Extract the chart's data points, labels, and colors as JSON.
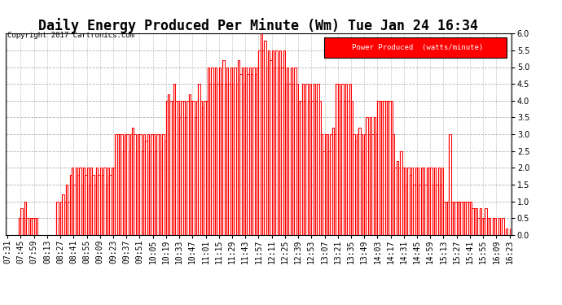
{
  "title": "Daily Energy Produced Per Minute (Wm) Tue Jan 24 16:34",
  "copyright": "Copyright 2017 Cartronics.com",
  "legend_label": "Power Produced  (watts/minute)",
  "ylim": [
    0.0,
    6.0
  ],
  "yticks": [
    0.0,
    0.5,
    1.0,
    1.5,
    2.0,
    2.5,
    3.0,
    3.5,
    4.0,
    4.5,
    5.0,
    5.5,
    6.0
  ],
  "line_color": "#ff0000",
  "bg_color": "#ffffff",
  "grid_color": "#aaaaaa",
  "title_fontsize": 12,
  "tick_fontsize": 7,
  "x_labels": [
    "07:31",
    "07:45",
    "07:59",
    "08:13",
    "08:27",
    "08:41",
    "08:55",
    "09:09",
    "09:23",
    "09:37",
    "09:51",
    "10:05",
    "10:19",
    "10:33",
    "10:47",
    "11:01",
    "11:15",
    "11:29",
    "11:43",
    "11:57",
    "12:11",
    "12:25",
    "12:39",
    "12:53",
    "13:07",
    "13:21",
    "13:35",
    "13:49",
    "14:03",
    "14:17",
    "14:31",
    "14:45",
    "14:59",
    "15:13",
    "15:27",
    "15:41",
    "15:55",
    "16:09",
    "16:23"
  ],
  "data_times": [
    "07:31",
    "07:33",
    "07:35",
    "07:37",
    "07:39",
    "07:41",
    "07:43",
    "07:45",
    "07:47",
    "07:49",
    "07:51",
    "07:53",
    "07:55",
    "07:57",
    "07:59",
    "08:01",
    "08:03",
    "08:05",
    "08:07",
    "08:09",
    "08:11",
    "08:13",
    "08:15",
    "08:17",
    "08:19",
    "08:21",
    "08:23",
    "08:25",
    "08:27",
    "08:29",
    "08:31",
    "08:33",
    "08:35",
    "08:37",
    "08:39",
    "08:41",
    "08:43",
    "08:45",
    "08:47",
    "08:49",
    "08:51",
    "08:53",
    "08:55",
    "08:57",
    "08:59",
    "09:01",
    "09:03",
    "09:05",
    "09:07",
    "09:09",
    "09:11",
    "09:13",
    "09:15",
    "09:17",
    "09:19",
    "09:21",
    "09:23",
    "09:25",
    "09:27",
    "09:29",
    "09:31",
    "09:33",
    "09:35",
    "09:37",
    "09:39",
    "09:41",
    "09:43",
    "09:45",
    "09:47",
    "09:49",
    "09:51",
    "09:53",
    "09:55",
    "09:57",
    "09:59",
    "10:01",
    "10:03",
    "10:05",
    "10:07",
    "10:09",
    "10:11",
    "10:13",
    "10:15",
    "10:17",
    "10:19",
    "10:21",
    "10:23",
    "10:25",
    "10:27",
    "10:29",
    "10:31",
    "10:33",
    "10:35",
    "10:37",
    "10:39",
    "10:41",
    "10:43",
    "10:45",
    "10:47",
    "10:49",
    "10:51",
    "10:53",
    "10:55",
    "10:57",
    "10:59",
    "11:01",
    "11:03",
    "11:05",
    "11:07",
    "11:09",
    "11:11",
    "11:13",
    "11:15",
    "11:17",
    "11:19",
    "11:21",
    "11:23",
    "11:25",
    "11:27",
    "11:29",
    "11:31",
    "11:33",
    "11:35",
    "11:37",
    "11:39",
    "11:41",
    "11:43",
    "11:45",
    "11:47",
    "11:49",
    "11:51",
    "11:53",
    "11:55",
    "11:57",
    "11:59",
    "12:01",
    "12:03",
    "12:05",
    "12:07",
    "12:09",
    "12:11",
    "12:13",
    "12:15",
    "12:17",
    "12:19",
    "12:21",
    "12:23",
    "12:25",
    "12:27",
    "12:29",
    "12:31",
    "12:33",
    "12:35",
    "12:37",
    "12:39",
    "12:41",
    "12:43",
    "12:45",
    "12:47",
    "12:49",
    "12:51",
    "12:53",
    "12:55",
    "12:57",
    "12:59",
    "13:01",
    "13:03",
    "13:05",
    "13:07",
    "13:09",
    "13:11",
    "13:13",
    "13:15",
    "13:17",
    "13:19",
    "13:21",
    "13:23",
    "13:25",
    "13:27",
    "13:29",
    "13:31",
    "13:33",
    "13:35",
    "13:37",
    "13:39",
    "13:41",
    "13:43",
    "13:45",
    "13:47",
    "13:49",
    "13:51",
    "13:53",
    "13:55",
    "13:57",
    "13:59",
    "14:01",
    "14:03",
    "14:05",
    "14:07",
    "14:09",
    "14:11",
    "14:13",
    "14:15",
    "14:17",
    "14:19",
    "14:21",
    "14:23",
    "14:25",
    "14:27",
    "14:29",
    "14:31",
    "14:33",
    "14:35",
    "14:37",
    "14:39",
    "14:41",
    "14:43",
    "14:45",
    "14:47",
    "14:49",
    "14:51",
    "14:53",
    "14:55",
    "14:57",
    "14:59",
    "15:01",
    "15:03",
    "15:05",
    "15:07",
    "15:09",
    "15:11",
    "15:13",
    "15:15",
    "15:17",
    "15:19",
    "15:21",
    "15:23",
    "15:25",
    "15:27",
    "15:29",
    "15:31",
    "15:33",
    "15:35",
    "15:37",
    "15:39",
    "15:41",
    "15:43",
    "15:45",
    "15:47",
    "15:49",
    "15:51",
    "15:53",
    "15:55",
    "15:57",
    "15:59",
    "16:01",
    "16:03",
    "16:05",
    "16:07",
    "16:09",
    "16:11",
    "16:13",
    "16:15",
    "16:17",
    "16:19",
    "16:21",
    "16:23"
  ],
  "data_values": [
    0.0,
    0.0,
    0.0,
    0.0,
    0.0,
    0.0,
    0.5,
    0.8,
    0.5,
    1.0,
    0.5,
    0.0,
    0.5,
    0.5,
    0.5,
    0.5,
    0.0,
    0.0,
    0.0,
    0.0,
    0.0,
    0.0,
    0.0,
    0.0,
    0.0,
    0.0,
    1.0,
    0.5,
    1.0,
    1.2,
    1.0,
    1.5,
    1.0,
    1.8,
    2.0,
    1.5,
    2.0,
    1.8,
    2.0,
    1.5,
    2.0,
    1.8,
    2.0,
    1.5,
    2.0,
    1.8,
    1.5,
    2.0,
    1.8,
    2.0,
    1.8,
    2.0,
    1.5,
    2.0,
    1.8,
    2.0,
    2.0,
    3.0,
    3.0,
    3.0,
    3.0,
    2.5,
    3.0,
    3.0,
    2.5,
    3.0,
    3.2,
    3.0,
    2.5,
    3.0,
    3.0,
    2.5,
    3.0,
    2.8,
    3.0,
    2.5,
    3.0,
    3.0,
    2.5,
    3.0,
    3.0,
    2.5,
    3.0,
    2.8,
    4.0,
    4.2,
    4.0,
    4.0,
    4.5,
    4.0,
    4.0,
    3.5,
    4.0,
    4.0,
    3.5,
    4.0,
    4.2,
    4.0,
    4.0,
    3.5,
    4.0,
    4.5,
    4.0,
    3.8,
    4.0,
    4.0,
    5.0,
    4.5,
    5.0,
    4.5,
    5.0,
    4.5,
    5.0,
    4.5,
    5.2,
    4.5,
    5.0,
    4.5,
    5.0,
    4.5,
    5.0,
    4.5,
    5.2,
    4.8,
    5.0,
    4.5,
    5.0,
    4.8,
    5.0,
    4.8,
    5.0,
    4.8,
    5.0,
    5.5,
    6.0,
    5.5,
    5.8,
    5.0,
    5.5,
    5.2,
    5.5,
    5.0,
    5.5,
    5.0,
    5.5,
    5.0,
    5.5,
    4.5,
    5.0,
    4.5,
    5.0,
    4.5,
    5.0,
    4.5,
    4.0,
    4.0,
    4.5,
    4.0,
    4.5,
    4.0,
    4.5,
    4.0,
    4.5,
    4.0,
    4.5,
    4.0,
    3.0,
    2.5,
    3.0,
    3.0,
    2.5,
    3.0,
    3.2,
    3.0,
    4.5,
    4.5,
    4.0,
    4.5,
    4.0,
    4.5,
    4.0,
    4.5,
    4.0,
    3.0,
    2.8,
    3.0,
    3.2,
    3.0,
    2.5,
    3.0,
    3.5,
    3.0,
    3.5,
    3.0,
    3.5,
    3.0,
    4.0,
    4.0,
    4.0,
    4.0,
    4.0,
    4.0,
    4.0,
    4.0,
    3.0,
    2.0,
    2.2,
    2.0,
    2.5,
    2.0,
    2.0,
    1.5,
    2.0,
    1.8,
    2.0,
    1.5,
    2.0,
    2.0,
    1.5,
    2.0,
    2.0,
    1.5,
    2.0,
    2.0,
    2.0,
    1.5,
    2.0,
    1.5,
    2.0,
    1.5,
    2.0,
    1.0,
    1.0,
    1.0,
    3.0,
    1.0,
    1.0,
    1.0,
    1.0,
    1.0,
    1.0,
    1.0,
    1.0,
    1.0,
    1.0,
    1.0,
    0.8,
    0.8,
    0.8,
    0.5,
    0.8,
    0.5,
    0.5,
    0.8,
    0.5,
    0.5,
    0.0,
    0.5,
    0.5,
    0.0,
    0.5,
    0.0,
    0.5,
    0.0,
    0.2,
    0.0,
    0.2
  ]
}
